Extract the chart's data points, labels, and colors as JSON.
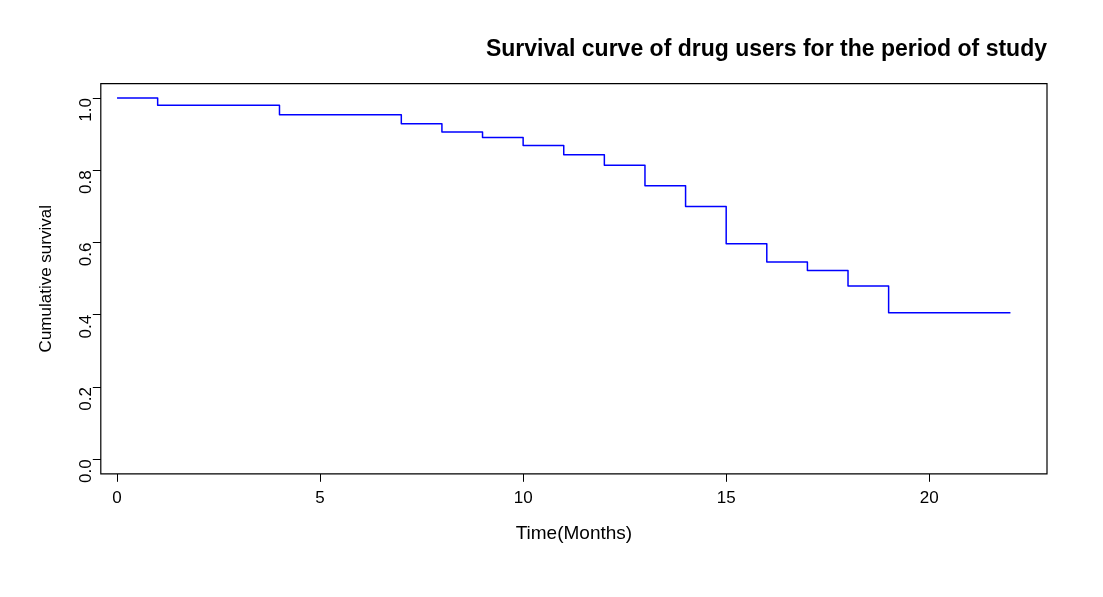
{
  "chart_data": {
    "type": "step",
    "title": "Survival curve of drug users for the period of study",
    "xlabel": "Time(Months)",
    "ylabel": "Cumulative survival",
    "x": [
      0,
      1,
      4,
      7,
      8,
      9,
      10,
      11,
      12,
      13,
      14,
      15,
      16,
      17,
      18,
      19,
      22
    ],
    "series": [
      {
        "color": "#0000ff",
        "values": [
          1.0,
          0.98,
          0.954,
          0.929,
          0.906,
          0.891,
          0.869,
          0.843,
          0.814,
          0.757,
          0.7,
          0.597,
          0.546,
          0.523,
          0.48,
          0.406,
          0.406
        ]
      }
    ],
    "xlim": [
      -0.4,
      22.9
    ],
    "ylim": [
      -0.04,
      1.04
    ],
    "xticks": [
      0,
      5,
      10,
      15,
      20
    ],
    "yticks": [
      {
        "value": 0,
        "label": "0.0"
      },
      {
        "value": 0.2,
        "label": "0.2"
      },
      {
        "value": 0.4,
        "label": "0.4"
      },
      {
        "value": 0.6,
        "label": "0.6"
      },
      {
        "value": 0.8,
        "label": "0.8"
      },
      {
        "value": 1,
        "label": "1.0"
      }
    ],
    "grid": false,
    "legend": false,
    "marker": "none",
    "line_style": "solid"
  }
}
